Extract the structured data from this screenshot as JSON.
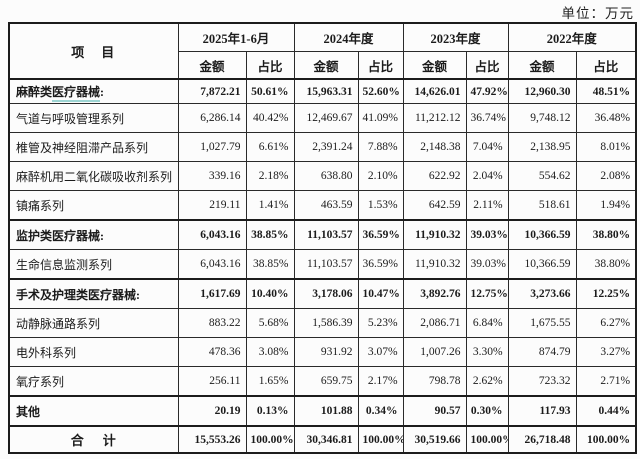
{
  "unit_label": "单位：万元",
  "colors": {
    "border": "#1c1c1c",
    "text": "#1b1b1b",
    "background": "#fcfcfc",
    "mark_underline": "#7dc8c6"
  },
  "table": {
    "item_header": "项　目",
    "sub_headers": {
      "amount": "金额",
      "ratio": "占比"
    },
    "col_groups": [
      {
        "label": "2025年1-6月"
      },
      {
        "label": "2024年度"
      },
      {
        "label": "2023年度"
      },
      {
        "label": "2022年度"
      }
    ],
    "rows": [
      {
        "label": "麻醉类医疗器械:",
        "bold": true,
        "mark": "医疗器械",
        "values": [
          "7,872.21",
          "50.61%",
          "15,963.31",
          "52.60%",
          "14,626.01",
          "47.92%",
          "12,960.30",
          "48.51%"
        ]
      },
      {
        "label": "气道与呼吸管理系列",
        "values": [
          "6,286.14",
          "40.42%",
          "12,469.67",
          "41.09%",
          "11,212.12",
          "36.74%",
          "9,748.12",
          "36.48%"
        ]
      },
      {
        "label": "椎管及神经阻滞产品系列",
        "values": [
          "1,027.79",
          "6.61%",
          "2,391.24",
          "7.88%",
          "2,148.38",
          "7.04%",
          "2,138.95",
          "8.01%"
        ]
      },
      {
        "label": "麻醉机用二氧化碳吸收剂系列",
        "values": [
          "339.16",
          "2.18%",
          "638.80",
          "2.10%",
          "622.92",
          "2.04%",
          "554.62",
          "2.08%"
        ]
      },
      {
        "label": "镇痛系列",
        "values": [
          "219.11",
          "1.41%",
          "463.59",
          "1.53%",
          "642.59",
          "2.11%",
          "518.61",
          "1.94%"
        ]
      },
      {
        "label": "监护类医疗器械:",
        "bold": true,
        "values": [
          "6,043.16",
          "38.85%",
          "11,103.57",
          "36.59%",
          "11,910.32",
          "39.03%",
          "10,366.59",
          "38.80%"
        ]
      },
      {
        "label": "生命信息监测系列",
        "values": [
          "6,043.16",
          "38.85%",
          "11,103.57",
          "36.59%",
          "11,910.32",
          "39.03%",
          "10,366.59",
          "38.80%"
        ]
      },
      {
        "label": "手术及护理类医疗器械:",
        "bold": true,
        "values": [
          "1,617.69",
          "10.40%",
          "3,178.06",
          "10.47%",
          "3,892.76",
          "12.75%",
          "3,273.66",
          "12.25%"
        ]
      },
      {
        "label": "动静脉通路系列",
        "values": [
          "883.22",
          "5.68%",
          "1,586.39",
          "5.23%",
          "2,086.71",
          "6.84%",
          "1,675.55",
          "6.27%"
        ]
      },
      {
        "label": "电外科系列",
        "values": [
          "478.36",
          "3.08%",
          "931.92",
          "3.07%",
          "1,007.26",
          "3.30%",
          "874.79",
          "3.27%"
        ]
      },
      {
        "label": "氧疗系列",
        "values": [
          "256.11",
          "1.65%",
          "659.75",
          "2.17%",
          "798.78",
          "2.62%",
          "723.32",
          "2.71%"
        ]
      },
      {
        "label": "其他",
        "bold": true,
        "values": [
          "20.19",
          "0.13%",
          "101.88",
          "0.34%",
          "90.57",
          "0.30%",
          "117.93",
          "0.44%"
        ]
      },
      {
        "label": "合　计",
        "bold": true,
        "center": true,
        "total": true,
        "values": [
          "15,553.26",
          "100.00%",
          "30,346.81",
          "100.00%",
          "30,519.66",
          "100.00%",
          "26,718.48",
          "100.00%"
        ]
      }
    ]
  }
}
